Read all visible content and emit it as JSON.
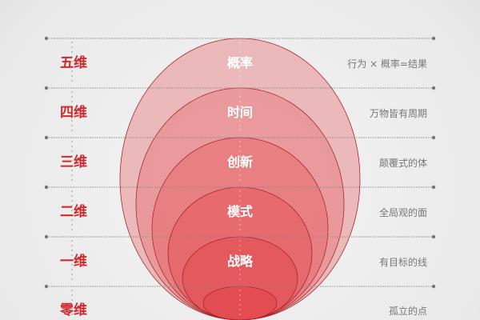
{
  "levels": [
    {
      "dimension": "五维",
      "core": "概率",
      "description": "行为 × 概率=结果"
    },
    {
      "dimension": "四维",
      "core": "时间",
      "description": "万物皆有周期"
    },
    {
      "dimension": "三维",
      "core": "创新",
      "description": "颠覆式的体"
    },
    {
      "dimension": "二维",
      "core": "模式",
      "description": "全局观的面"
    },
    {
      "dimension": "一维",
      "core": "战略",
      "description": "有目标的线"
    },
    {
      "dimension": "零维",
      "core": "",
      "description": "孤立的点"
    }
  ],
  "colors": {
    "accent": "#cf2a2e",
    "ellipse_fill": "#e23a40",
    "text_muted": "#777777"
  }
}
